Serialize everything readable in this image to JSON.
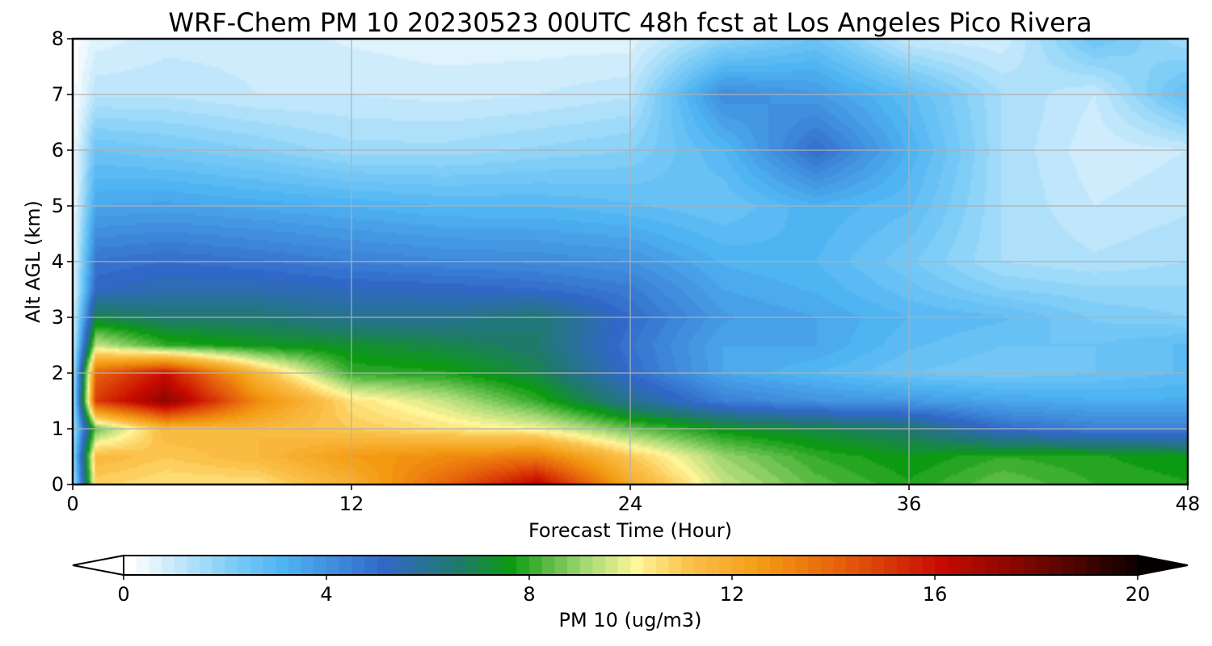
{
  "chart_data": {
    "type": "heatmap",
    "title": "WRF-Chem PM 10  20230523 00UTC 48h fcst at Los Angeles Pico Rivera",
    "xlabel": "Forecast Time (Hour)",
    "ylabel": "Alt AGL (km)",
    "xlim": [
      0,
      48
    ],
    "ylim": [
      0,
      8
    ],
    "xticks": [
      0,
      12,
      24,
      36,
      48
    ],
    "yticks": [
      0,
      1,
      2,
      3,
      4,
      5,
      6,
      7,
      8
    ],
    "grid": true,
    "colorbar": {
      "label": "PM 10  (ug/m3)",
      "range": [
        0,
        20
      ],
      "ticks": [
        0,
        4,
        8,
        12,
        16,
        20
      ],
      "orientation": "horizontal",
      "placement": "bottom",
      "extend": "both",
      "color_stops": [
        {
          "value": 0,
          "color": "#ffffff"
        },
        {
          "value": 2,
          "color": "#7ecdf7"
        },
        {
          "value": 3,
          "color": "#4fb4f2"
        },
        {
          "value": 5,
          "color": "#3168c8"
        },
        {
          "value": 6.5,
          "color": "#1f7a6a"
        },
        {
          "value": 7.5,
          "color": "#0c9a12"
        },
        {
          "value": 9,
          "color": "#a6d975"
        },
        {
          "value": 10,
          "color": "#fff599"
        },
        {
          "value": 11,
          "color": "#fbc24c"
        },
        {
          "value": 12.5,
          "color": "#f39a12"
        },
        {
          "value": 14,
          "color": "#e6600c"
        },
        {
          "value": 16,
          "color": "#c80a00"
        },
        {
          "value": 18,
          "color": "#6e0600"
        },
        {
          "value": 20,
          "color": "#050000"
        }
      ]
    },
    "x": [
      0,
      1,
      4,
      8,
      12,
      16,
      20,
      24,
      28,
      32,
      36,
      40,
      44,
      48
    ],
    "y": [
      0,
      0.5,
      1,
      1.5,
      2,
      2.5,
      3,
      3.5,
      4,
      5,
      6,
      7,
      8
    ],
    "z": [
      [
        1.0,
        10.8,
        10.5,
        10.5,
        11.8,
        14.0,
        16.5,
        12.0,
        9.5,
        8.4,
        7.8,
        8.5,
        8.0,
        7.8
      ],
      [
        1.5,
        11.5,
        11.0,
        11.5,
        12.5,
        13.0,
        13.5,
        11.0,
        9.0,
        8.0,
        7.5,
        8.0,
        7.8,
        7.5
      ],
      [
        1.2,
        8.5,
        11.5,
        11.5,
        11.0,
        10.5,
        10.0,
        8.5,
        7.5,
        7.0,
        6.5,
        5.0,
        4.5,
        4.5
      ],
      [
        1.0,
        15.0,
        17.5,
        13.0,
        10.5,
        9.5,
        8.0,
        6.0,
        4.5,
        4.0,
        3.8,
        3.5,
        3.3,
        3.3
      ],
      [
        0.8,
        14.0,
        16.0,
        11.5,
        8.0,
        7.8,
        7.0,
        5.0,
        3.5,
        3.0,
        2.5,
        2.3,
        2.5,
        2.8
      ],
      [
        0.6,
        9.5,
        8.0,
        7.5,
        7.3,
        7.0,
        6.5,
        4.8,
        3.5,
        3.5,
        2.8,
        2.5,
        2.5,
        2.8
      ],
      [
        0.5,
        7.0,
        6.5,
        6.5,
        6.0,
        6.0,
        6.5,
        5.0,
        3.8,
        3.5,
        3.0,
        2.8,
        2.2,
        2.0
      ],
      [
        0.4,
        5.2,
        5.5,
        5.5,
        5.3,
        5.2,
        5.0,
        4.6,
        3.5,
        3.2,
        2.6,
        2.0,
        1.8,
        1.8
      ],
      [
        0.3,
        4.8,
        5.0,
        4.8,
        4.5,
        4.3,
        4.2,
        4.0,
        3.2,
        3.0,
        2.3,
        1.5,
        1.3,
        1.5
      ],
      [
        0.2,
        3.5,
        3.6,
        3.4,
        3.2,
        3.0,
        3.0,
        2.8,
        2.5,
        3.2,
        2.8,
        1.5,
        1.0,
        1.2
      ],
      [
        0.2,
        2.5,
        2.3,
        2.0,
        1.6,
        1.6,
        1.8,
        2.0,
        3.0,
        5.0,
        3.2,
        1.5,
        0.8,
        1.0
      ],
      [
        0.1,
        1.2,
        1.2,
        1.0,
        1.0,
        0.9,
        1.0,
        1.2,
        4.2,
        3.8,
        2.8,
        1.5,
        1.0,
        2.8
      ],
      [
        0.1,
        0.6,
        0.9,
        0.9,
        0.7,
        0.6,
        0.6,
        0.6,
        1.8,
        2.5,
        1.0,
        0.8,
        2.5,
        1.5
      ]
    ]
  }
}
